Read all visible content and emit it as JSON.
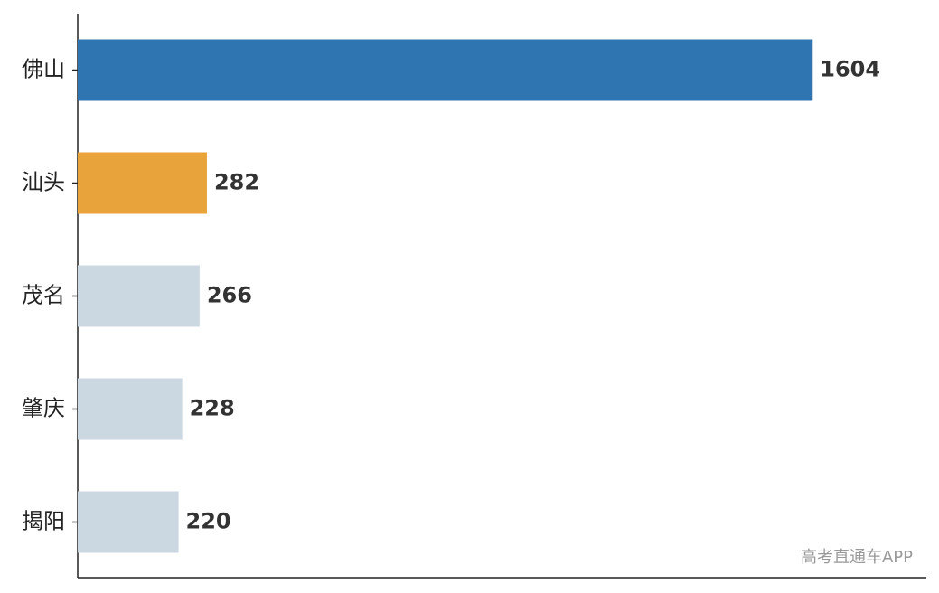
{
  "chart_data": {
    "type": "hbar",
    "categories": [
      "佛山",
      "汕头",
      "茂名",
      "肇庆",
      "揭阳"
    ],
    "values": [
      1604,
      282,
      266,
      228,
      220
    ],
    "colors": [
      "#2e75b2",
      "#e8a33a",
      "#cbd7e1",
      "#cbd7e1",
      "#cbd7e1"
    ],
    "xlim": [
      0,
      1852
    ],
    "watermark": "高考直通车APP"
  }
}
